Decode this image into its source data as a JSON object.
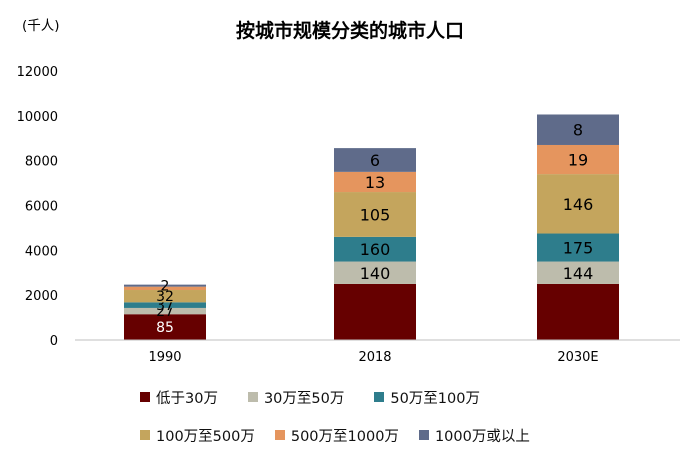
{
  "chart_data": {
    "type": "bar",
    "stacked": true,
    "title": "按城市规模分类的城市人口",
    "unit_label": "(千人)",
    "xlabel": "",
    "ylabel": "",
    "ylim": [
      0,
      12000
    ],
    "yticks": [
      0,
      2000,
      4000,
      6000,
      8000,
      10000,
      12000
    ],
    "ytick_labels": [
      "0",
      "2000",
      "4000",
      "6000",
      "8000",
      "10000",
      "12000"
    ],
    "categories": [
      "1990",
      "2018",
      "2030E"
    ],
    "legend_position": "bottom",
    "series": [
      {
        "name": "低于30万",
        "color": "#660000",
        "values": [
          1150,
          2500,
          2500
        ],
        "labels": [
          "85",
          "",
          ""
        ]
      },
      {
        "name": "30万至50万",
        "color": "#bdbcac",
        "values": [
          280,
          1000,
          1000
        ],
        "labels": [
          "27",
          "140",
          "144"
        ]
      },
      {
        "name": "50万至100万",
        "color": "#2e7d8c",
        "values": [
          250,
          1100,
          1250
        ],
        "labels": [
          "37",
          "160",
          "175"
        ]
      },
      {
        "name": "100万至500万",
        "color": "#c4a55d",
        "values": [
          550,
          2000,
          2650
        ],
        "labels": [
          "32",
          "105",
          "146"
        ]
      },
      {
        "name": "500万至1000万",
        "color": "#e5955e",
        "values": [
          150,
          900,
          1300
        ],
        "labels": [
          "",
          "13",
          "19"
        ]
      },
      {
        "name": "1000万或以上",
        "color": "#5f6b8a",
        "values": [
          90,
          1060,
          1360
        ],
        "labels": [
          "2",
          "6",
          "8"
        ]
      }
    ]
  }
}
